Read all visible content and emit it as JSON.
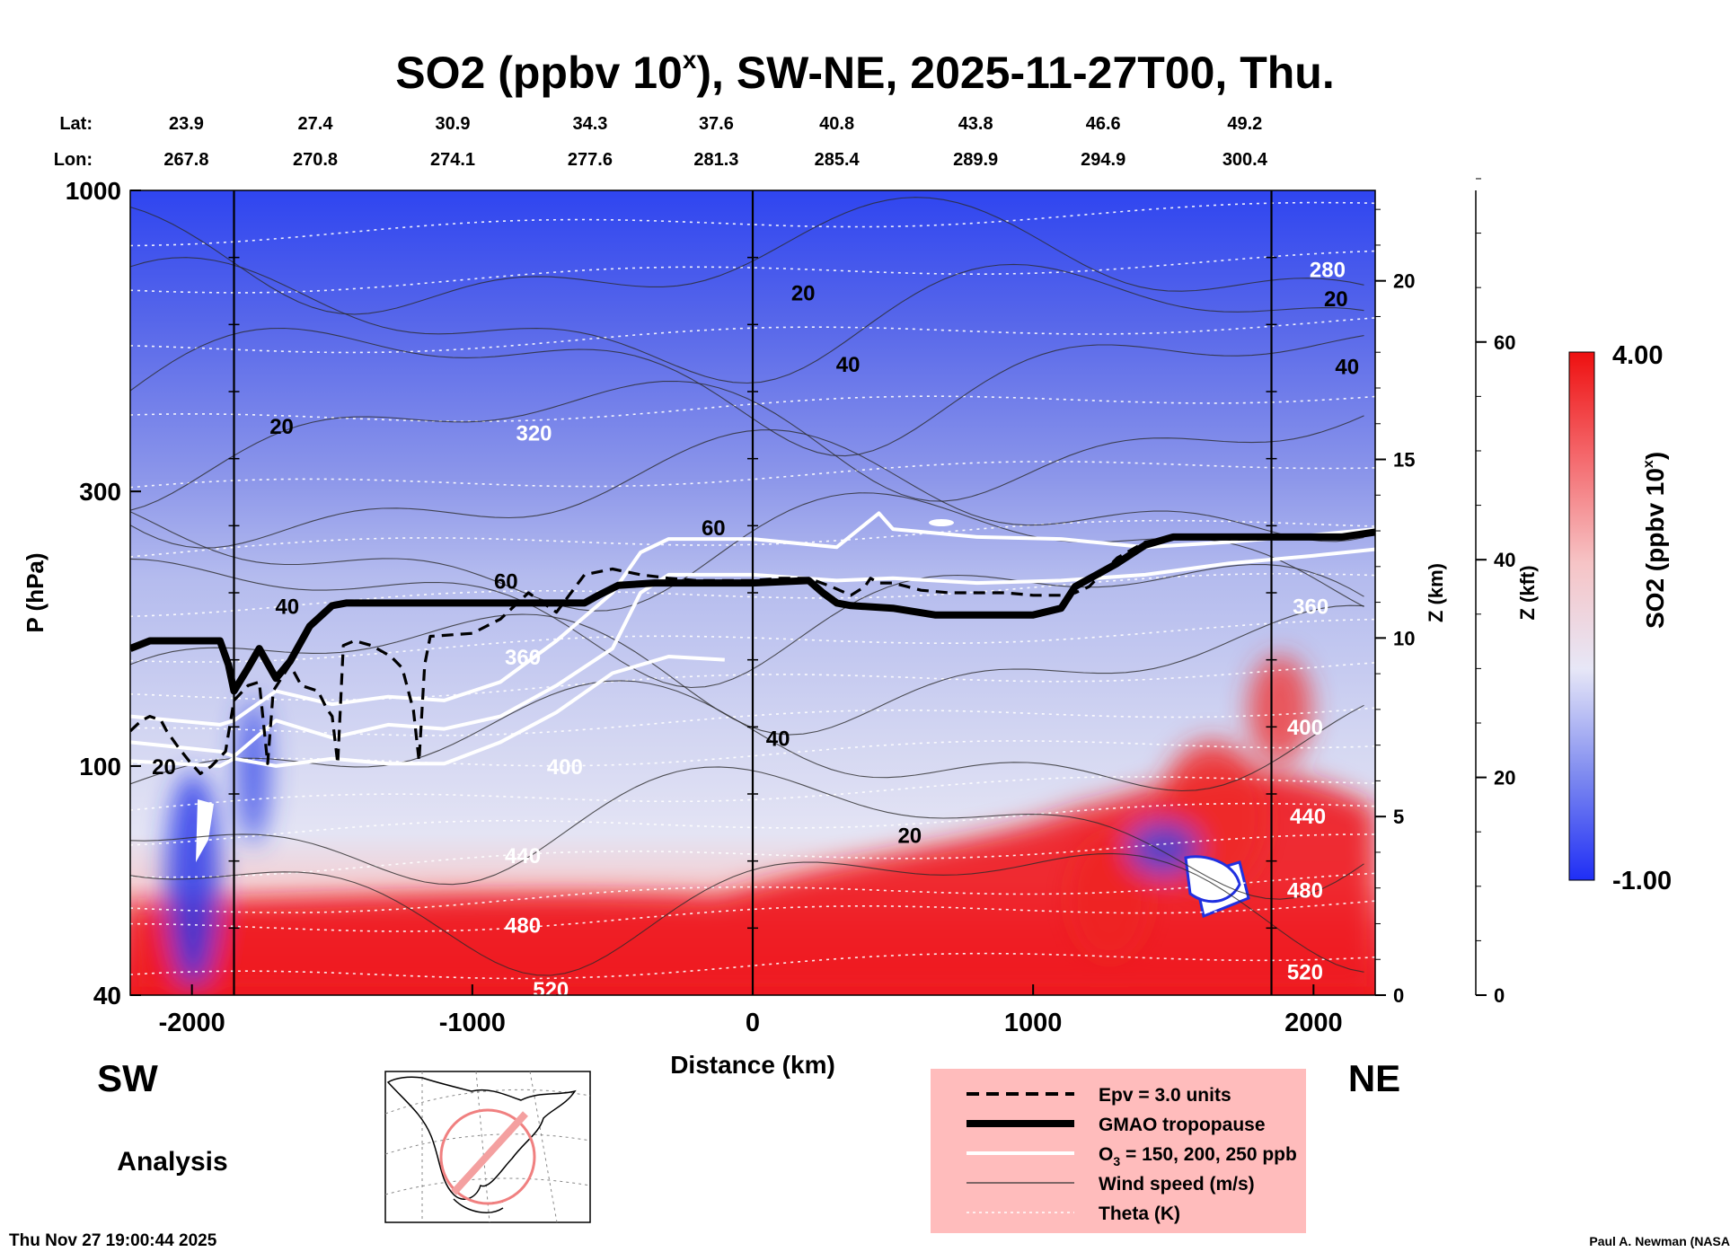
{
  "title": {
    "prefix": "SO2 (ppbv 10",
    "superscript": "x",
    "suffix": "), SW-NE, 2025-11-27T00, Thu."
  },
  "transect": {
    "lat_label": "Lat:",
    "lon_label": "Lon:",
    "lat": [
      "23.9",
      "27.4",
      "30.9",
      "34.3",
      "37.6",
      "40.8",
      "43.8",
      "46.6",
      "49.2"
    ],
    "lon": [
      "267.8",
      "270.8",
      "274.1",
      "277.6",
      "281.3",
      "285.4",
      "289.9",
      "294.9",
      "300.4"
    ]
  },
  "chart_data": {
    "type": "heatmap",
    "field": "SO2 (ppbv 10^x)",
    "xlabel": "Distance (km)",
    "ylabel": "P (hPa)",
    "xlim": [
      -2220,
      2220
    ],
    "ylim": [
      1000,
      40
    ],
    "yscale": "log",
    "x_ticks": [
      -2000,
      -1000,
      0,
      1000,
      2000
    ],
    "x_tick_labels": [
      "-2000",
      "-1000",
      "0",
      "1000",
      "2000"
    ],
    "y_ticks": [
      40,
      100,
      300,
      1000
    ],
    "y_tick_labels": [
      "40",
      "100",
      "300",
      "1000"
    ],
    "z_km_axis": {
      "label": "Z (km)",
      "ticks": [
        0,
        5,
        10,
        15,
        20
      ],
      "tick_labels": [
        "0",
        "5",
        "10",
        "15",
        "20"
      ]
    },
    "z_kft_axis": {
      "label": "Z (kft)",
      "ticks": [
        0,
        20,
        40,
        60
      ],
      "tick_labels": [
        "0",
        "20",
        "40",
        "60"
      ]
    },
    "colorbar": {
      "label": "SO2 (ppbv 10",
      "label_sup": "x",
      "min": -1.0,
      "max": 4.0,
      "min_label": "-1.00",
      "max_label": "4.00"
    },
    "vertical_lines_km": [
      -1850,
      0,
      1850
    ],
    "theta_labels": [
      {
        "text": "520",
        "x": -720,
        "p": 41
      },
      {
        "text": "520",
        "x": 1970,
        "p": 44
      },
      {
        "text": "480",
        "x": -820,
        "p": 53
      },
      {
        "text": "480",
        "x": 1970,
        "p": 61
      },
      {
        "text": "440",
        "x": -820,
        "p": 70
      },
      {
        "text": "440",
        "x": 1980,
        "p": 82
      },
      {
        "text": "400",
        "x": -670,
        "p": 100
      },
      {
        "text": "400",
        "x": 1970,
        "p": 117
      },
      {
        "text": "360",
        "x": -820,
        "p": 155
      },
      {
        "text": "360",
        "x": 1990,
        "p": 190
      },
      {
        "text": "320",
        "x": -780,
        "p": 380
      },
      {
        "text": "280",
        "x": 2050,
        "p": 730
      }
    ],
    "wind_labels": [
      {
        "text": "20",
        "x": -2100,
        "p": 100
      },
      {
        "text": "20",
        "x": 560,
        "p": 76
      },
      {
        "text": "40",
        "x": 90,
        "p": 112
      },
      {
        "text": "40",
        "x": -1660,
        "p": 190
      },
      {
        "text": "60",
        "x": -880,
        "p": 210
      },
      {
        "text": "60",
        "x": -140,
        "p": 260
      },
      {
        "text": "20",
        "x": -1680,
        "p": 390
      },
      {
        "text": "40",
        "x": 340,
        "p": 500
      },
      {
        "text": "20",
        "x": 180,
        "p": 665
      },
      {
        "text": "40",
        "x": 2120,
        "p": 495
      },
      {
        "text": "20",
        "x": 2080,
        "p": 650
      }
    ],
    "tropopause_gmao": {
      "x": [
        -2220,
        -2150,
        -2050,
        -1950,
        -1900,
        -1870,
        -1850,
        -1800,
        -1760,
        -1700,
        -1650,
        -1580,
        -1500,
        -1450,
        -1300,
        -1000,
        -700,
        -600,
        -550,
        -480,
        -350,
        -200,
        0,
        200,
        250,
        300,
        350,
        500,
        650,
        800,
        1000,
        1100,
        1150,
        1300,
        1400,
        1500,
        1800,
        2000,
        2100,
        2220
      ],
      "p": [
        160,
        165,
        165,
        165,
        165,
        150,
        135,
        148,
        160,
        142,
        152,
        175,
        190,
        192,
        192,
        192,
        192,
        192,
        198,
        206,
        208,
        208,
        208,
        210,
        200,
        192,
        190,
        188,
        183,
        183,
        183,
        188,
        205,
        225,
        242,
        250,
        250,
        250,
        250,
        255
      ]
    },
    "epv_3pvu": {
      "x": [
        -2220,
        -2180,
        -2150,
        -2110,
        -2090,
        -2050,
        -2010,
        -1970,
        -1930,
        -1880,
        -1850,
        -1800,
        -1760,
        -1730,
        -1710,
        -1650,
        -1610,
        -1550,
        -1520,
        -1500,
        -1480,
        -1460,
        -1420,
        -1360,
        -1290,
        -1250,
        -1210,
        -1190,
        -1170,
        -1150,
        -1000,
        -900,
        -800,
        -700,
        -600,
        -500,
        -400,
        -300,
        -200,
        -100,
        0,
        100,
        200,
        280,
        350,
        400,
        420,
        450,
        500,
        550,
        600,
        700,
        800,
        900,
        1000,
        1100,
        1150,
        1200,
        1300,
        1400,
        1500,
        1600,
        1700,
        1800,
        1900,
        2000,
        2100,
        2220
      ],
      "p": [
        115,
        120,
        122,
        120,
        115,
        108,
        102,
        97,
        100,
        106,
        130,
        138,
        140,
        101,
        135,
        150,
        138,
        135,
        126,
        122,
        101,
        162,
        165,
        162,
        155,
        148,
        125,
        102,
        150,
        168,
        170,
        180,
        200,
        185,
        215,
        220,
        215,
        212,
        210,
        210,
        210,
        212,
        212,
        205,
        198,
        205,
        212,
        208,
        208,
        205,
        202,
        200,
        200,
        200,
        198,
        198,
        200,
        205,
        230,
        245,
        250,
        250,
        248,
        248,
        250,
        248,
        250,
        255
      ]
    },
    "ozone_lines": [
      {
        "level": "150 ppb",
        "x": [
          -2220,
          -1900,
          -1850,
          -1700,
          -1500,
          -1300,
          -1100,
          -900,
          -700,
          -500,
          -300,
          -100
        ],
        "p": [
          102,
          100,
          103,
          100,
          103,
          101,
          101,
          110,
          124,
          145,
          155,
          153
        ]
      },
      {
        "level": "200 ppb",
        "x": [
          -2220,
          -1900,
          -1850,
          -1700,
          -1500,
          -1300,
          -1100,
          -900,
          -700,
          -500,
          -400,
          -300,
          0,
          300,
          500,
          800,
          1100,
          1400,
          1700,
          2000,
          2220
        ],
        "p": [
          110,
          106,
          104,
          120,
          112,
          118,
          116,
          122,
          138,
          160,
          200,
          215,
          215,
          210,
          212,
          208,
          210,
          215,
          225,
          232,
          238
        ]
      },
      {
        "level": "250 ppb",
        "x": [
          -2220,
          -1900,
          -1850,
          -1700,
          -1500,
          -1300,
          -1100,
          -900,
          -700,
          -500,
          -400,
          -300,
          0,
          300,
          450,
          500,
          800,
          1100,
          1400,
          1700,
          2000,
          2220
        ],
        "p": [
          122,
          118,
          120,
          135,
          128,
          132,
          130,
          140,
          165,
          200,
          235,
          248,
          248,
          240,
          275,
          258,
          250,
          248,
          240,
          245,
          252,
          258
        ]
      }
    ]
  },
  "legend": {
    "items": [
      {
        "label": "Epv = 3.0 units",
        "style": "dashed"
      },
      {
        "label": "GMAO tropopause",
        "style": "thick"
      },
      {
        "label_prefix": "O",
        "label_sub": "3",
        "label_suffix": " = 150, 200, 250 ppb",
        "style": "white"
      },
      {
        "label": "Wind speed (m/s)",
        "style": "thin"
      },
      {
        "label": "Theta (K)",
        "style": "dotted"
      }
    ]
  },
  "labels": {
    "sw": "SW",
    "ne": "NE",
    "analysis": "Analysis",
    "timestamp": "Thu Nov 27 19:00:44 2025",
    "credit": "Paul A. Newman (NASA"
  },
  "colors": {
    "low": "#1f2ef5",
    "mid": "#e8e8f6",
    "high": "#ff1010",
    "legend_bg": "#ffbcbc"
  }
}
